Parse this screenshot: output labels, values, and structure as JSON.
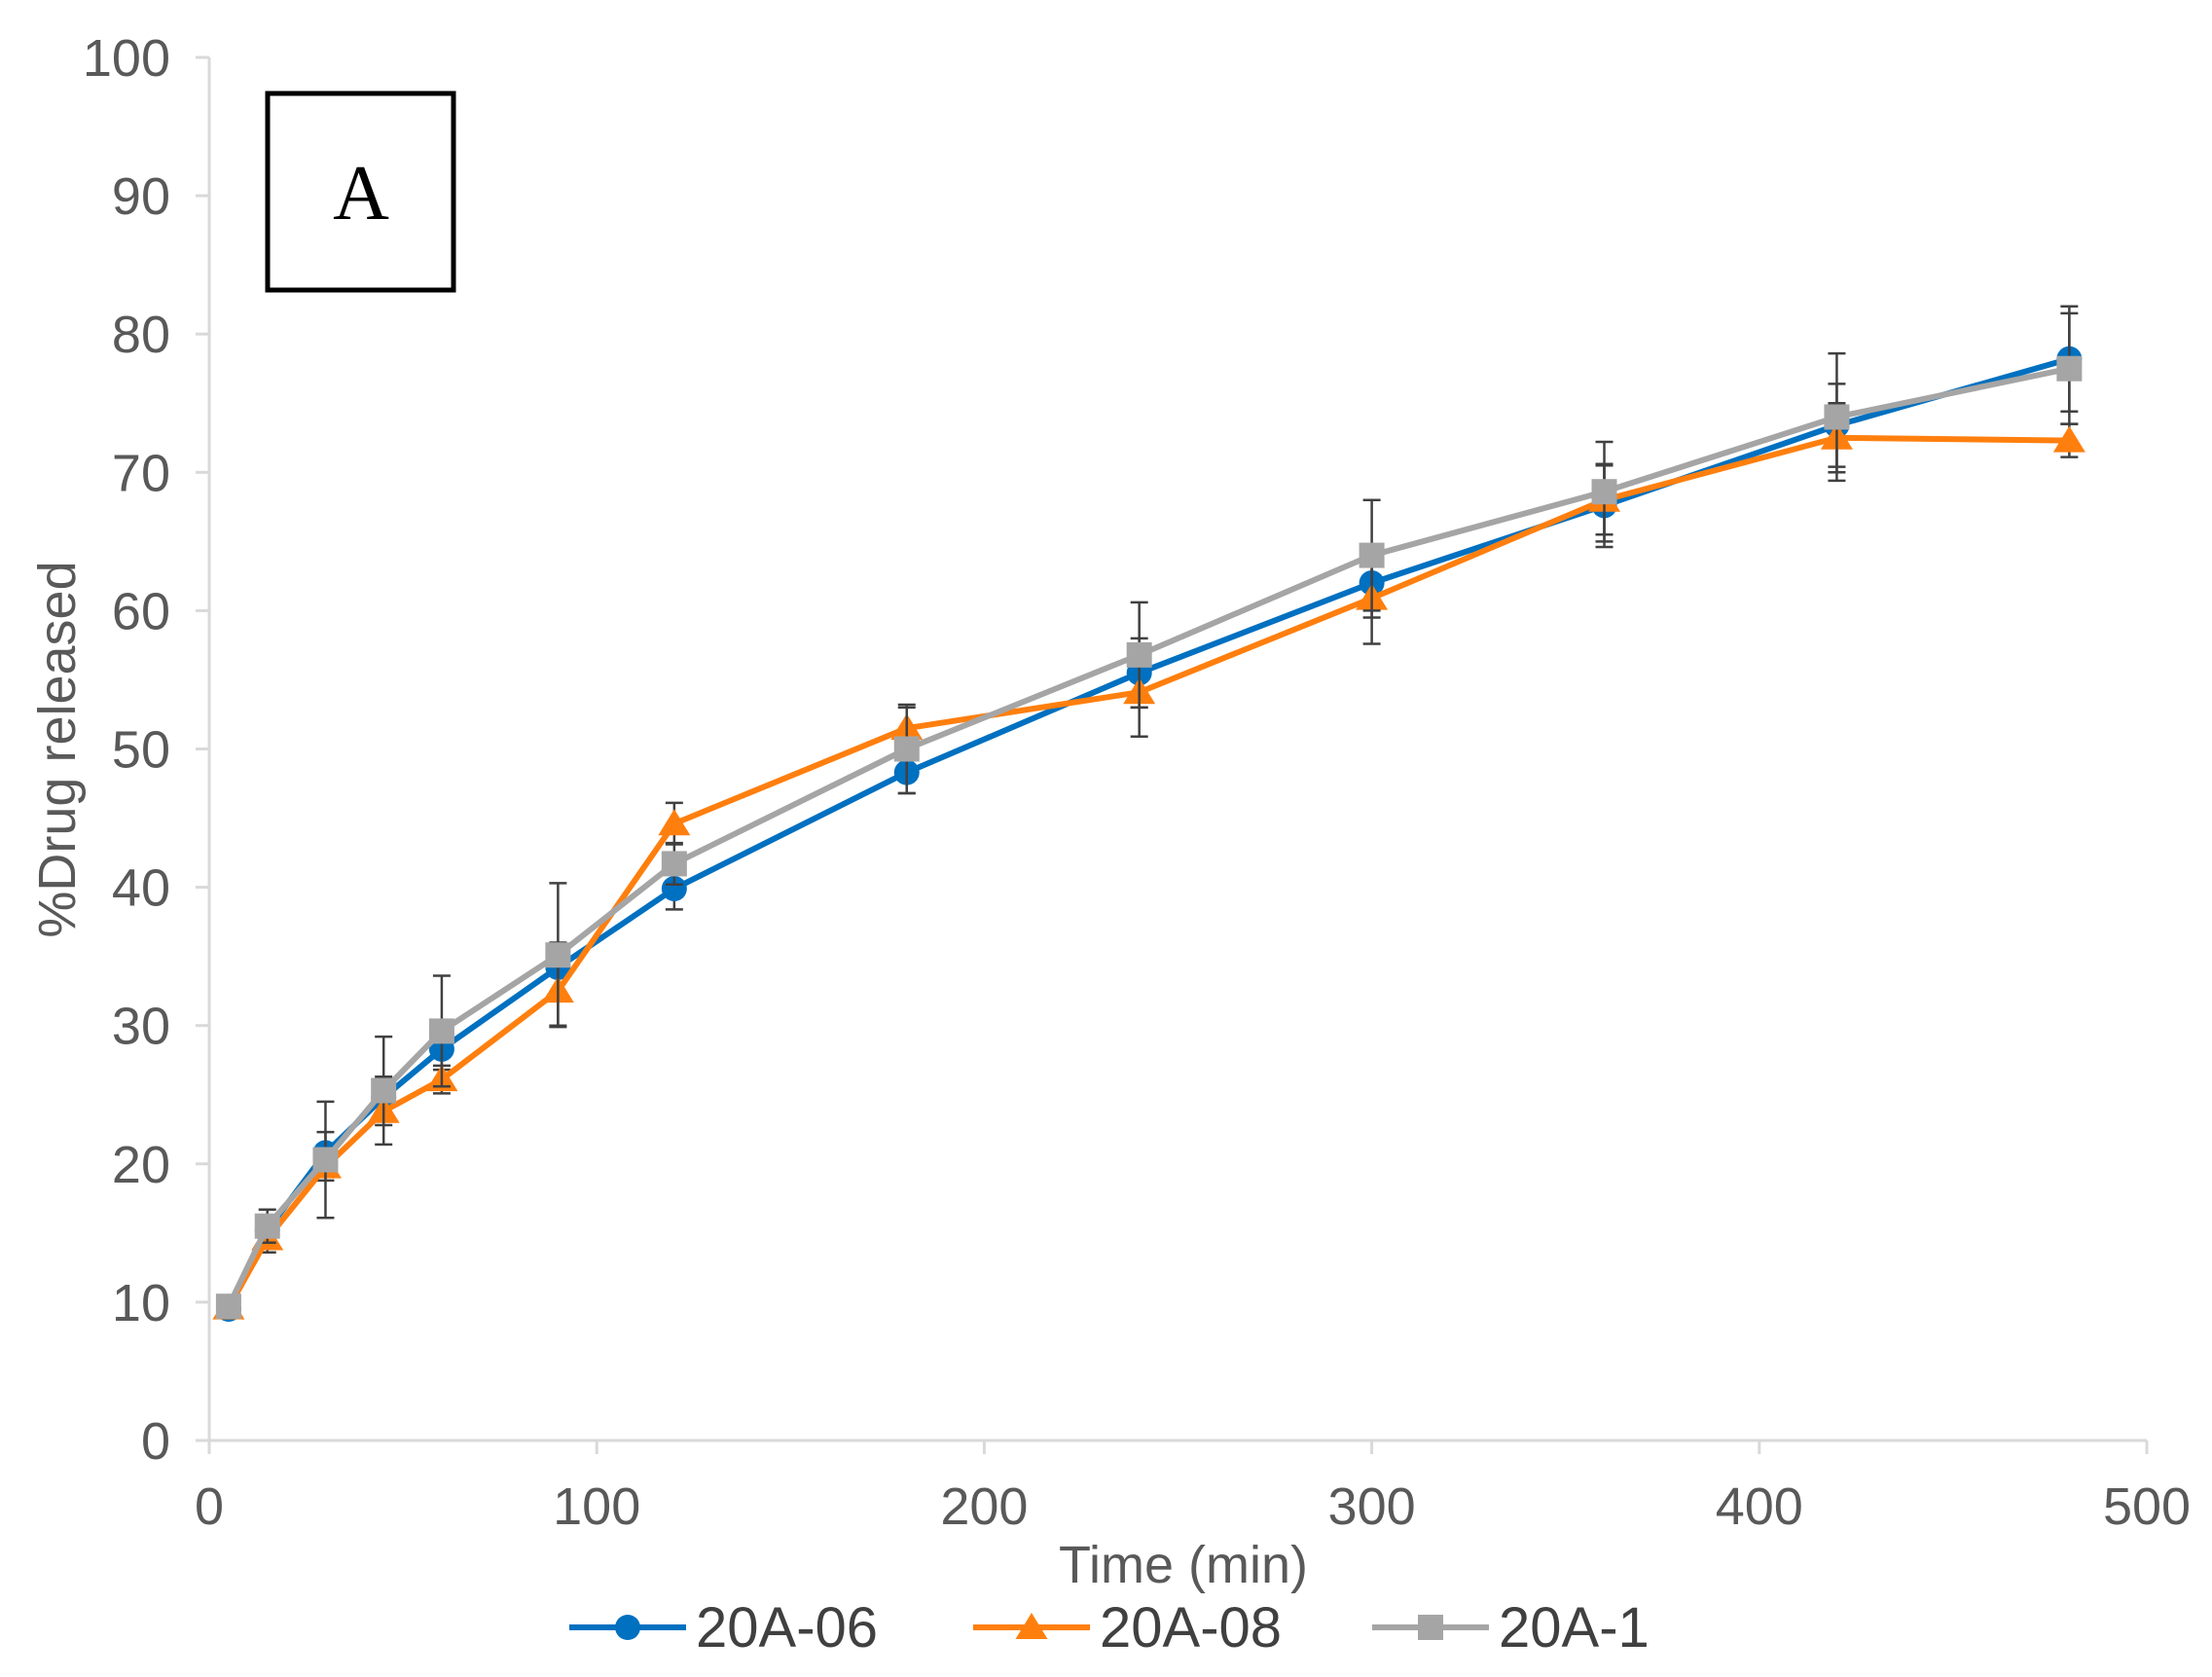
{
  "chart_data": {
    "type": "line",
    "title": "",
    "panel_label": "A",
    "xlabel": "Time (min)",
    "ylabel": "%Drug released",
    "xlim": [
      0,
      500
    ],
    "ylim": [
      0,
      100
    ],
    "xticks": [
      0,
      100,
      200,
      300,
      400,
      500
    ],
    "yticks": [
      0,
      10,
      20,
      30,
      40,
      50,
      60,
      70,
      80,
      90,
      100
    ],
    "grid": false,
    "legend_position": "bottom",
    "x": [
      5,
      15,
      30,
      45,
      60,
      90,
      120,
      180,
      240,
      300,
      360,
      420,
      480
    ],
    "series": [
      {
        "name": "20A-06",
        "color": "#0070C0",
        "marker": "circle",
        "values": [
          9.5,
          15.2,
          20.8,
          24.8,
          28.3,
          34.2,
          39.9,
          48.3,
          55.5,
          62.0,
          67.6,
          73.4,
          78.2
        ],
        "errors": [
          0.5,
          0.8,
          1.5,
          1.5,
          1.5,
          1.8,
          1.5,
          1.5,
          2.5,
          2.5,
          3.0,
          3.0,
          3.8
        ]
      },
      {
        "name": "20A-08",
        "color": "#FF7F0E",
        "marker": "triangle",
        "values": [
          9.6,
          14.6,
          19.8,
          23.8,
          26.1,
          32.5,
          44.6,
          51.5,
          54.1,
          60.9,
          68.0,
          72.5,
          72.3
        ],
        "errors": [
          0.5,
          1.0,
          1.0,
          1.0,
          1.0,
          2.5,
          1.5,
          1.5,
          3.2,
          3.3,
          2.5,
          2.5,
          1.2
        ]
      },
      {
        "name": "20A-1",
        "color": "#A5A5A5",
        "marker": "square",
        "values": [
          9.7,
          15.5,
          20.3,
          25.3,
          29.6,
          35.1,
          41.7,
          50.0,
          56.8,
          64.0,
          68.6,
          74.0,
          77.5
        ],
        "errors": [
          0.5,
          1.2,
          4.2,
          3.9,
          4.0,
          5.2,
          1.5,
          3.2,
          3.8,
          4.0,
          3.6,
          4.6,
          4.0
        ]
      }
    ]
  }
}
